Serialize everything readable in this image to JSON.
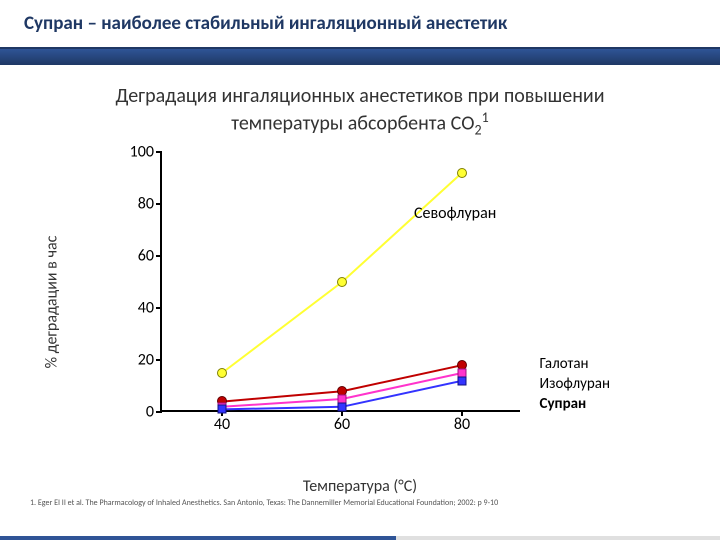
{
  "header": {
    "title": "Супран – наиболее стабильный ингаляционный анестетик"
  },
  "subtitle": {
    "line1": "Деградация ингаляционных анестетиков при повышении",
    "line2_pre": "температуры абсорбента СО",
    "line2_sub": "2",
    "line2_sup": "1"
  },
  "chart": {
    "type": "line",
    "ylabel": "% деградации в час",
    "xlabel": "Температура (°C)",
    "ylim": [
      0,
      100
    ],
    "ytick_step": 20,
    "xlim": [
      30,
      90
    ],
    "xticks": [
      40,
      60,
      80
    ],
    "yticks": [
      0,
      20,
      40,
      60,
      80,
      100
    ],
    "series": [
      {
        "name": "Севофлуран",
        "label_key": "legend.sevo",
        "color": "#ffff33",
        "marker_border": "#808000",
        "marker": "circle",
        "bold": false,
        "points": [
          {
            "x": 40,
            "y": 15
          },
          {
            "x": 60,
            "y": 50
          },
          {
            "x": 80,
            "y": 92
          }
        ],
        "label_pos": {
          "x": 72,
          "y": 80
        }
      },
      {
        "name": "Галотан",
        "label_key": "legend.halo",
        "color": "#c00000",
        "marker_border": "#600000",
        "marker": "circle",
        "bold": false,
        "points": [
          {
            "x": 40,
            "y": 4
          },
          {
            "x": 60,
            "y": 8
          },
          {
            "x": 80,
            "y": 18
          }
        ],
        "label_pos": {
          "x": 88,
          "y": 22
        }
      },
      {
        "name": "Изофлуран",
        "label_key": "legend.iso",
        "color": "#ff33cc",
        "marker_border": "#a01080",
        "marker": "square",
        "bold": false,
        "points": [
          {
            "x": 40,
            "y": 2
          },
          {
            "x": 60,
            "y": 5
          },
          {
            "x": 80,
            "y": 15
          }
        ],
        "label_pos": {
          "x": 88,
          "y": 16
        }
      },
      {
        "name": "Супран",
        "label_key": "legend.supran",
        "color": "#3333ff",
        "marker_border": "#101080",
        "marker": "square",
        "bold": true,
        "points": [
          {
            "x": 40,
            "y": 1
          },
          {
            "x": 60,
            "y": 2
          },
          {
            "x": 80,
            "y": 12
          }
        ],
        "label_pos": {
          "x": 88,
          "y": 10
        }
      }
    ],
    "legend": {
      "sevo": "Севофлуран",
      "halo": "Галотан",
      "iso": "Изофлуран",
      "supran": "Супран"
    }
  },
  "footnote": "1. Eger EI II et al. The Pharmacology of Inhaled Anesthetics. San Antonio, Texas: The Dannemiller Memorial Educational Foundation; 2002: p 9-10"
}
